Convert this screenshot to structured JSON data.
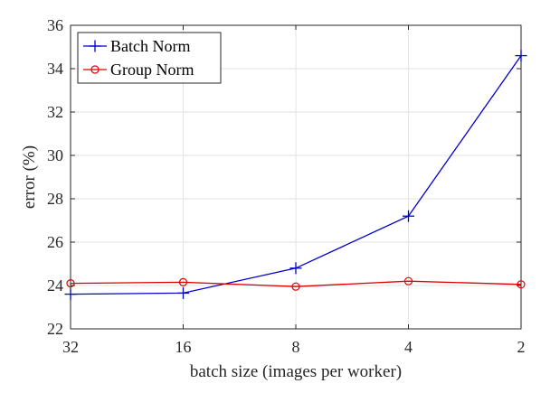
{
  "chart_data": {
    "type": "line",
    "categories": [
      "32",
      "16",
      "8",
      "4",
      "2"
    ],
    "xlabel": "batch size (images per worker)",
    "ylabel": "error (%)",
    "ylim": [
      22,
      36
    ],
    "yticks": [
      22,
      24,
      26,
      28,
      30,
      32,
      34,
      36
    ],
    "grid": true,
    "legend": "top-left",
    "series": [
      {
        "name": "Batch Norm",
        "color": "#0000cc",
        "marker": "plus",
        "values": [
          23.6,
          23.65,
          24.8,
          27.2,
          34.6
        ]
      },
      {
        "name": "Group Norm",
        "color": "#dd0000",
        "marker": "circle",
        "values": [
          24.1,
          24.15,
          23.95,
          24.2,
          24.05
        ]
      }
    ]
  }
}
